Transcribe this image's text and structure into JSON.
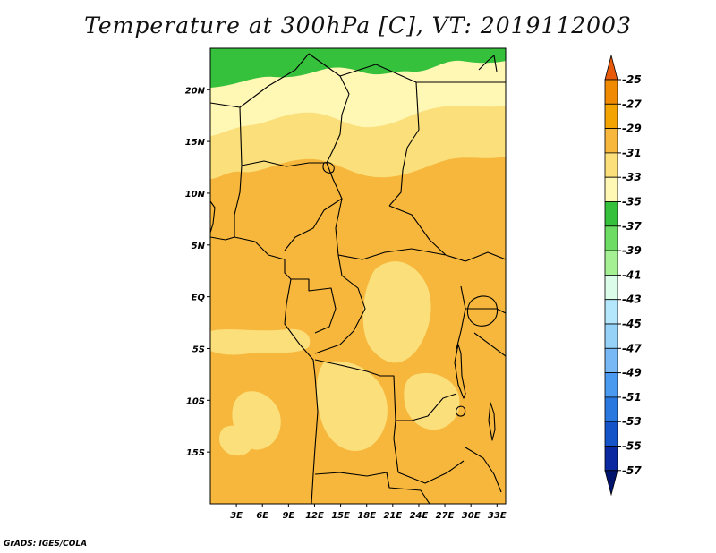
{
  "title": "Temperature at 300hPa [C], VT: 2019112003",
  "credit": "GrADS: IGES/COLA",
  "map": {
    "lon_range": [
      0,
      34
    ],
    "lat_range": [
      -20,
      24
    ],
    "lon_ticks": [
      {
        "value": 3,
        "label": "3E"
      },
      {
        "value": 6,
        "label": "6E"
      },
      {
        "value": 9,
        "label": "9E"
      },
      {
        "value": 12,
        "label": "12E"
      },
      {
        "value": 15,
        "label": "15E"
      },
      {
        "value": 18,
        "label": "18E"
      },
      {
        "value": 21,
        "label": "21E"
      },
      {
        "value": 24,
        "label": "24E"
      },
      {
        "value": 27,
        "label": "27E"
      },
      {
        "value": 30,
        "label": "30E"
      },
      {
        "value": 33,
        "label": "33E"
      }
    ],
    "lat_ticks": [
      {
        "value": 20,
        "label": "20N"
      },
      {
        "value": 15,
        "label": "15N"
      },
      {
        "value": 10,
        "label": "10N"
      },
      {
        "value": 5,
        "label": "5N"
      },
      {
        "value": 0,
        "label": "EQ"
      },
      {
        "value": -5,
        "label": "5S"
      },
      {
        "value": -10,
        "label": "10S"
      },
      {
        "value": -15,
        "label": "15S"
      }
    ]
  },
  "colorbar": {
    "labels": [
      "-25",
      "-27",
      "-29",
      "-31",
      "-33",
      "-35",
      "-37",
      "-39",
      "-41",
      "-43",
      "-45",
      "-47",
      "-49",
      "-51",
      "-53",
      "-55",
      "-57"
    ],
    "colors": [
      "#e85a0a",
      "#f08a00",
      "#f4a400",
      "#f6b73c",
      "#fbdf7a",
      "#fff7b4",
      "#36c13c",
      "#6ddc64",
      "#a6f094",
      "#dcfcea",
      "#b4e6fc",
      "#96d2f8",
      "#78b8f4",
      "#4a9af0",
      "#2878e0",
      "#1454c8",
      "#0a28a0",
      "#00146e"
    ]
  }
}
